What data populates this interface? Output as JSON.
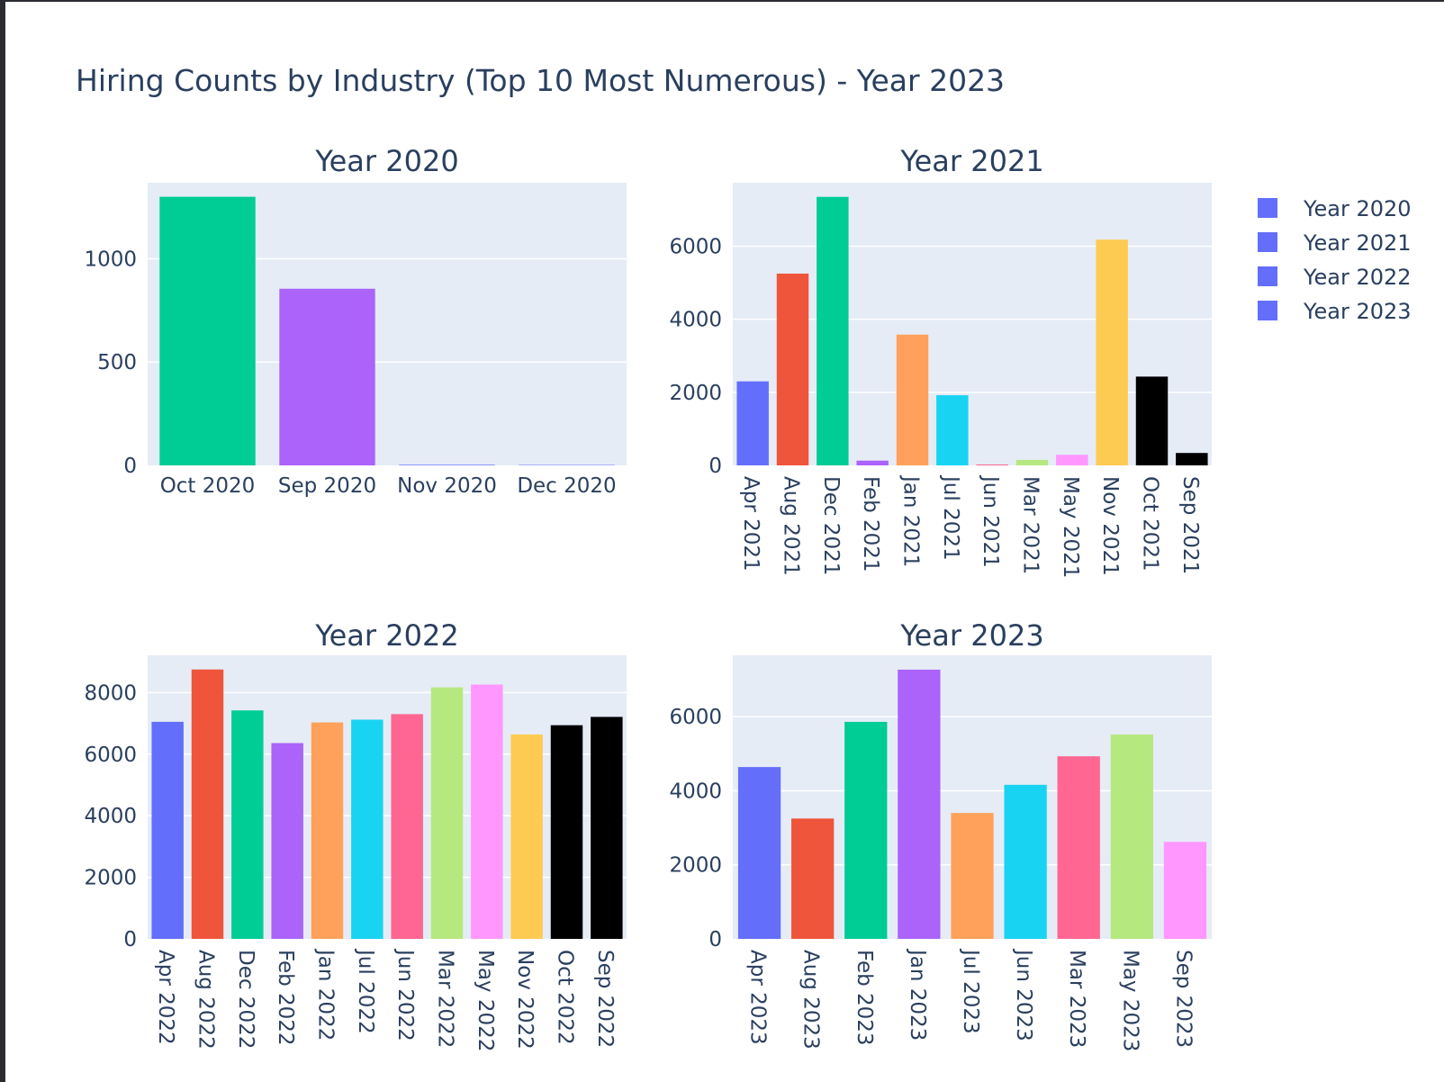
{
  "title": "Hiring Counts by Industry (Top 10 Most Numerous) - Year 2023",
  "legend": {
    "placement": "top-right",
    "items": [
      {
        "label": "Year 2020",
        "color": "#636efa"
      },
      {
        "label": "Year 2021",
        "color": "#636efa"
      },
      {
        "label": "Year 2022",
        "color": "#636efa"
      },
      {
        "label": "Year 2023",
        "color": "#636efa"
      }
    ]
  },
  "palette": [
    "#636efa",
    "#EF553B",
    "#00cc96",
    "#ab63fa",
    "#FFA15A",
    "#19d3f3",
    "#FF6692",
    "#B6E880",
    "#FF97FF",
    "#FECB52",
    "#000000",
    "#000000"
  ],
  "chart_data": [
    {
      "type": "bar",
      "title": "Year 2020",
      "categories": [
        "Oct 2020",
        "Sep 2020",
        "Nov 2020",
        "Dec 2020"
      ],
      "values": [
        1300,
        855,
        3,
        2
      ],
      "colors": [
        "#00cc96",
        "#ab63fa",
        "#636efa",
        "#636efa"
      ],
      "yticks": [
        0,
        500,
        1000
      ],
      "ylim": [
        0,
        1368
      ],
      "xlabel_rotation": 0,
      "grid": true
    },
    {
      "type": "bar",
      "title": "Year 2021",
      "categories": [
        "Apr 2021",
        "Aug 2021",
        "Dec 2021",
        "Feb 2021",
        "Jan 2021",
        "Jul 2021",
        "Jun 2021",
        "Mar 2021",
        "May 2021",
        "Nov 2021",
        "Oct 2021",
        "Sep 2021"
      ],
      "values": [
        2300,
        5250,
        7350,
        130,
        3580,
        1920,
        25,
        150,
        290,
        6180,
        2430,
        340
      ],
      "colors": [
        "#636efa",
        "#EF553B",
        "#00cc96",
        "#ab63fa",
        "#FFA15A",
        "#19d3f3",
        "#FF6692",
        "#B6E880",
        "#FF97FF",
        "#FECB52",
        "#000000",
        "#000000"
      ],
      "yticks": [
        0,
        2000,
        4000,
        6000
      ],
      "ylim": [
        0,
        7737
      ],
      "xlabel_rotation": 90,
      "grid": true
    },
    {
      "type": "bar",
      "title": "Year 2022",
      "categories": [
        "Apr 2022",
        "Aug 2022",
        "Dec 2022",
        "Feb 2022",
        "Jan 2022",
        "Jul 2022",
        "Jun 2022",
        "Mar 2022",
        "May 2022",
        "Nov 2022",
        "Oct 2022",
        "Sep 2022"
      ],
      "values": [
        7050,
        8750,
        7420,
        6360,
        7030,
        7120,
        7300,
        8170,
        8260,
        6640,
        6940,
        7210
      ],
      "colors": [
        "#636efa",
        "#EF553B",
        "#00cc96",
        "#ab63fa",
        "#FFA15A",
        "#19d3f3",
        "#FF6692",
        "#B6E880",
        "#FF97FF",
        "#FECB52",
        "#000000",
        "#000000"
      ],
      "yticks": [
        0,
        2000,
        4000,
        6000,
        8000
      ],
      "ylim": [
        0,
        9210
      ],
      "xlabel_rotation": 90,
      "grid": true
    },
    {
      "type": "bar",
      "title": "Year 2023",
      "categories": [
        "Apr 2023",
        "Aug 2023",
        "Feb 2023",
        "Jan 2023",
        "Jul 2023",
        "Jun 2023",
        "Mar 2023",
        "May 2023",
        "Sep 2023"
      ],
      "values": [
        4640,
        3250,
        5860,
        7270,
        3400,
        4160,
        4930,
        5520,
        2620
      ],
      "colors": [
        "#636efa",
        "#EF553B",
        "#00cc96",
        "#ab63fa",
        "#FFA15A",
        "#19d3f3",
        "#FF6692",
        "#B6E880",
        "#FF97FF"
      ],
      "yticks": [
        0,
        2000,
        4000,
        6000
      ],
      "ylim": [
        0,
        7657
      ],
      "xlabel_rotation": 90,
      "grid": true
    }
  ]
}
